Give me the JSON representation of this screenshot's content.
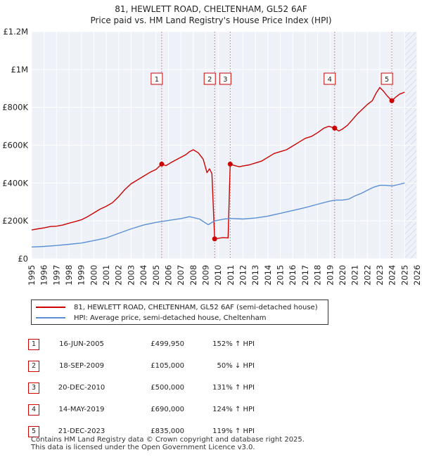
{
  "chart_data": {
    "type": "line",
    "title": "81, HEWLETT ROAD, CHELTENHAM, GL52 6AF",
    "subtitle": "Price paid vs. HM Land Registry's House Price Index (HPI)",
    "xlim": [
      1995,
      2026
    ],
    "ylim": [
      0,
      1200000
    ],
    "x_ticks": [
      "1995",
      "1996",
      "1997",
      "1998",
      "1999",
      "2000",
      "2001",
      "2002",
      "2003",
      "2004",
      "2005",
      "2006",
      "2007",
      "2008",
      "2009",
      "2010",
      "2011",
      "2012",
      "2013",
      "2014",
      "2015",
      "2016",
      "2017",
      "2018",
      "2019",
      "2020",
      "2021",
      "2022",
      "2023",
      "2024",
      "2025",
      "2026"
    ],
    "y_ticks": [
      {
        "value": 0,
        "label": "£0"
      },
      {
        "value": 200000,
        "label": "£200K"
      },
      {
        "value": 400000,
        "label": "£400K"
      },
      {
        "value": 600000,
        "label": "£600K"
      },
      {
        "value": 800000,
        "label": "£800K"
      },
      {
        "value": 1000000,
        "label": "£1M"
      },
      {
        "value": 1200000,
        "label": "£1.2M"
      }
    ],
    "hatch_start": 2025.05,
    "series": [
      {
        "name": "81, HEWLETT ROAD, CHELTENHAM, GL52 6AF (semi-detached house)",
        "color": "#cc0000",
        "x": [
          1995.0,
          1995.5,
          1996.0,
          1996.5,
          1997.0,
          1997.5,
          1998.0,
          1998.5,
          1999.0,
          1999.5,
          2000.0,
          2000.5,
          2001.0,
          2001.5,
          2002.0,
          2002.5,
          2003.0,
          2003.5,
          2004.0,
          2004.5,
          2005.0,
          2005.46,
          2005.8,
          2006.2,
          2006.6,
          2007.0,
          2007.4,
          2007.7,
          2008.0,
          2008.4,
          2008.8,
          2009.1,
          2009.3,
          2009.5,
          2009.72,
          2010.0,
          2010.4,
          2010.8,
          2010.97,
          2011.3,
          2011.7,
          2012.0,
          2012.5,
          2013.0,
          2013.5,
          2014.0,
          2014.5,
          2015.0,
          2015.5,
          2016.0,
          2016.5,
          2017.0,
          2017.5,
          2018.0,
          2018.5,
          2018.9,
          2019.37,
          2019.7,
          2020.0,
          2020.4,
          2020.8,
          2021.2,
          2021.6,
          2022.0,
          2022.4,
          2022.7,
          2023.0,
          2023.3,
          2023.6,
          2023.97,
          2024.3,
          2024.6,
          2025.0
        ],
        "values": [
          152000,
          158000,
          163000,
          170000,
          172000,
          178000,
          188000,
          196000,
          206000,
          222000,
          242000,
          262000,
          277000,
          296000,
          328000,
          366000,
          396000,
          416000,
          436000,
          456000,
          472000,
          499950,
          492000,
          508000,
          522000,
          536000,
          550000,
          566000,
          576000,
          560000,
          526000,
          455000,
          475000,
          450000,
          105000,
          108000,
          112000,
          110000,
          500000,
          493000,
          486000,
          490000,
          496000,
          506000,
          516000,
          536000,
          556000,
          566000,
          576000,
          596000,
          616000,
          636000,
          646000,
          666000,
          690000,
          700000,
          690000,
          675000,
          685000,
          705000,
          735000,
          765000,
          790000,
          815000,
          835000,
          875000,
          905000,
          885000,
          860000,
          835000,
          855000,
          870000,
          880000
        ]
      },
      {
        "name": "HPI: Average price, semi-detached house, Cheltenham",
        "color": "#5b8fd4",
        "x": [
          1995.0,
          1996.0,
          1997.0,
          1998.0,
          1999.0,
          2000.0,
          2001.0,
          2002.0,
          2003.0,
          2004.0,
          2005.0,
          2006.0,
          2007.0,
          2007.7,
          2008.5,
          2009.2,
          2009.7,
          2010.5,
          2011.0,
          2012.0,
          2013.0,
          2014.0,
          2015.0,
          2016.0,
          2017.0,
          2018.0,
          2019.0,
          2019.5,
          2020.0,
          2020.5,
          2021.0,
          2021.5,
          2022.0,
          2022.5,
          2023.0,
          2023.5,
          2024.0,
          2024.5,
          2025.0
        ],
        "values": [
          62000,
          65000,
          70000,
          76000,
          83000,
          96000,
          110000,
          134000,
          158000,
          178000,
          192000,
          202000,
          212000,
          222000,
          210000,
          180000,
          200000,
          210000,
          213000,
          210000,
          215000,
          225000,
          240000,
          255000,
          270000,
          288000,
          305000,
          310000,
          310000,
          315000,
          332000,
          345000,
          362000,
          378000,
          388000,
          388000,
          385000,
          392000,
          400000
        ]
      }
    ],
    "sales": [
      {
        "label": "1",
        "x": 2005.46,
        "price": 499950
      },
      {
        "label": "2",
        "x": 2009.72,
        "price": 105000
      },
      {
        "label": "3",
        "x": 2010.97,
        "price": 500000
      },
      {
        "label": "4",
        "x": 2019.37,
        "price": 690000
      },
      {
        "label": "5",
        "x": 2023.97,
        "price": 835000
      }
    ]
  },
  "legend": {
    "property": "81, HEWLETT ROAD, CHELTENHAM, GL52 6AF (semi-detached house)",
    "hpi": "HPI: Average price, semi-detached house, Cheltenham"
  },
  "transactions": [
    {
      "num": "1",
      "date": "16-JUN-2005",
      "price": "£499,950",
      "hpi": "152% ↑ HPI"
    },
    {
      "num": "2",
      "date": "18-SEP-2009",
      "price": "£105,000",
      "hpi": "50% ↓ HPI"
    },
    {
      "num": "3",
      "date": "20-DEC-2010",
      "price": "£500,000",
      "hpi": "131% ↑ HPI"
    },
    {
      "num": "4",
      "date": "14-MAY-2019",
      "price": "£690,000",
      "hpi": "124% ↑ HPI"
    },
    {
      "num": "5",
      "date": "21-DEC-2023",
      "price": "£835,000",
      "hpi": "119% ↑ HPI"
    }
  ],
  "footer": {
    "line1": "Contains HM Land Registry data © Crown copyright and database right 2025.",
    "line2": "This data is licensed under the Open Government Licence v3.0."
  }
}
